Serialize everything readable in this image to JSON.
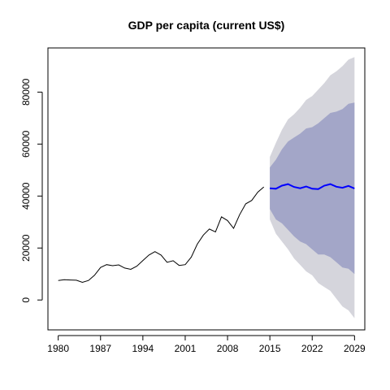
{
  "chart_data": {
    "type": "line",
    "title": "GDP per capita (current US$)",
    "xlabel": "",
    "ylabel": "",
    "xlim": [
      1978.3,
      2030.7
    ],
    "ylim": [
      -11500,
      97000
    ],
    "x_ticks": [
      1980,
      1987,
      1994,
      2001,
      2008,
      2015,
      2022,
      2029
    ],
    "y_ticks": [
      0,
      20000,
      40000,
      60000,
      80000
    ],
    "grid": false,
    "legend": "none",
    "colors": {
      "history": "#000000",
      "forecast": "#0000ff",
      "band_80": "#a3a6c8",
      "band_95": "#d5d5dc"
    },
    "series": [
      {
        "kind": "history",
        "x": [
          1980,
          1981,
          1982,
          1983,
          1984,
          1985,
          1986,
          1987,
          1988,
          1989,
          1990,
          1991,
          1992,
          1993,
          1994,
          1995,
          1996,
          1997,
          1998,
          1999,
          2000,
          2001,
          2002,
          2003,
          2004,
          2005,
          2006,
          2007,
          2008,
          2009,
          2010,
          2011,
          2012,
          2013,
          2014
        ],
        "values": [
          7500,
          7800,
          7700,
          7600,
          6800,
          7500,
          9500,
          12500,
          13600,
          13200,
          13500,
          12300,
          11800,
          13000,
          15200,
          17300,
          18600,
          17300,
          14500,
          15100,
          13300,
          13600,
          16500,
          21500,
          25000,
          27300,
          26200,
          32000,
          30600,
          27600,
          32800,
          37000,
          38300,
          41500,
          43500
        ]
      },
      {
        "kind": "forecast",
        "x": [
          2015,
          2016,
          2017,
          2018,
          2019,
          2020,
          2021,
          2022,
          2023,
          2024,
          2025,
          2026,
          2027,
          2028,
          2029
        ],
        "values": [
          43000,
          42800,
          44000,
          44600,
          43500,
          43000,
          43700,
          42800,
          42700,
          44000,
          44600,
          43600,
          43200,
          43900,
          42900
        ],
        "lo80": [
          35000,
          31000,
          29500,
          27000,
          24500,
          22500,
          21500,
          19500,
          17500,
          17500,
          16500,
          14500,
          12500,
          12000,
          10000
        ],
        "hi80": [
          51000,
          54000,
          58000,
          61000,
          62500,
          64000,
          66000,
          66500,
          68000,
          70000,
          72000,
          72500,
          73500,
          75500,
          76000
        ],
        "lo95": [
          31000,
          25500,
          22500,
          19500,
          16000,
          13500,
          11000,
          9500,
          6500,
          5000,
          3500,
          500,
          -2500,
          -4000,
          -7000
        ],
        "hi95": [
          55000,
          60500,
          65500,
          69500,
          71500,
          74000,
          77000,
          78500,
          81000,
          83500,
          86500,
          88000,
          90000,
          92500,
          93500
        ]
      }
    ]
  }
}
